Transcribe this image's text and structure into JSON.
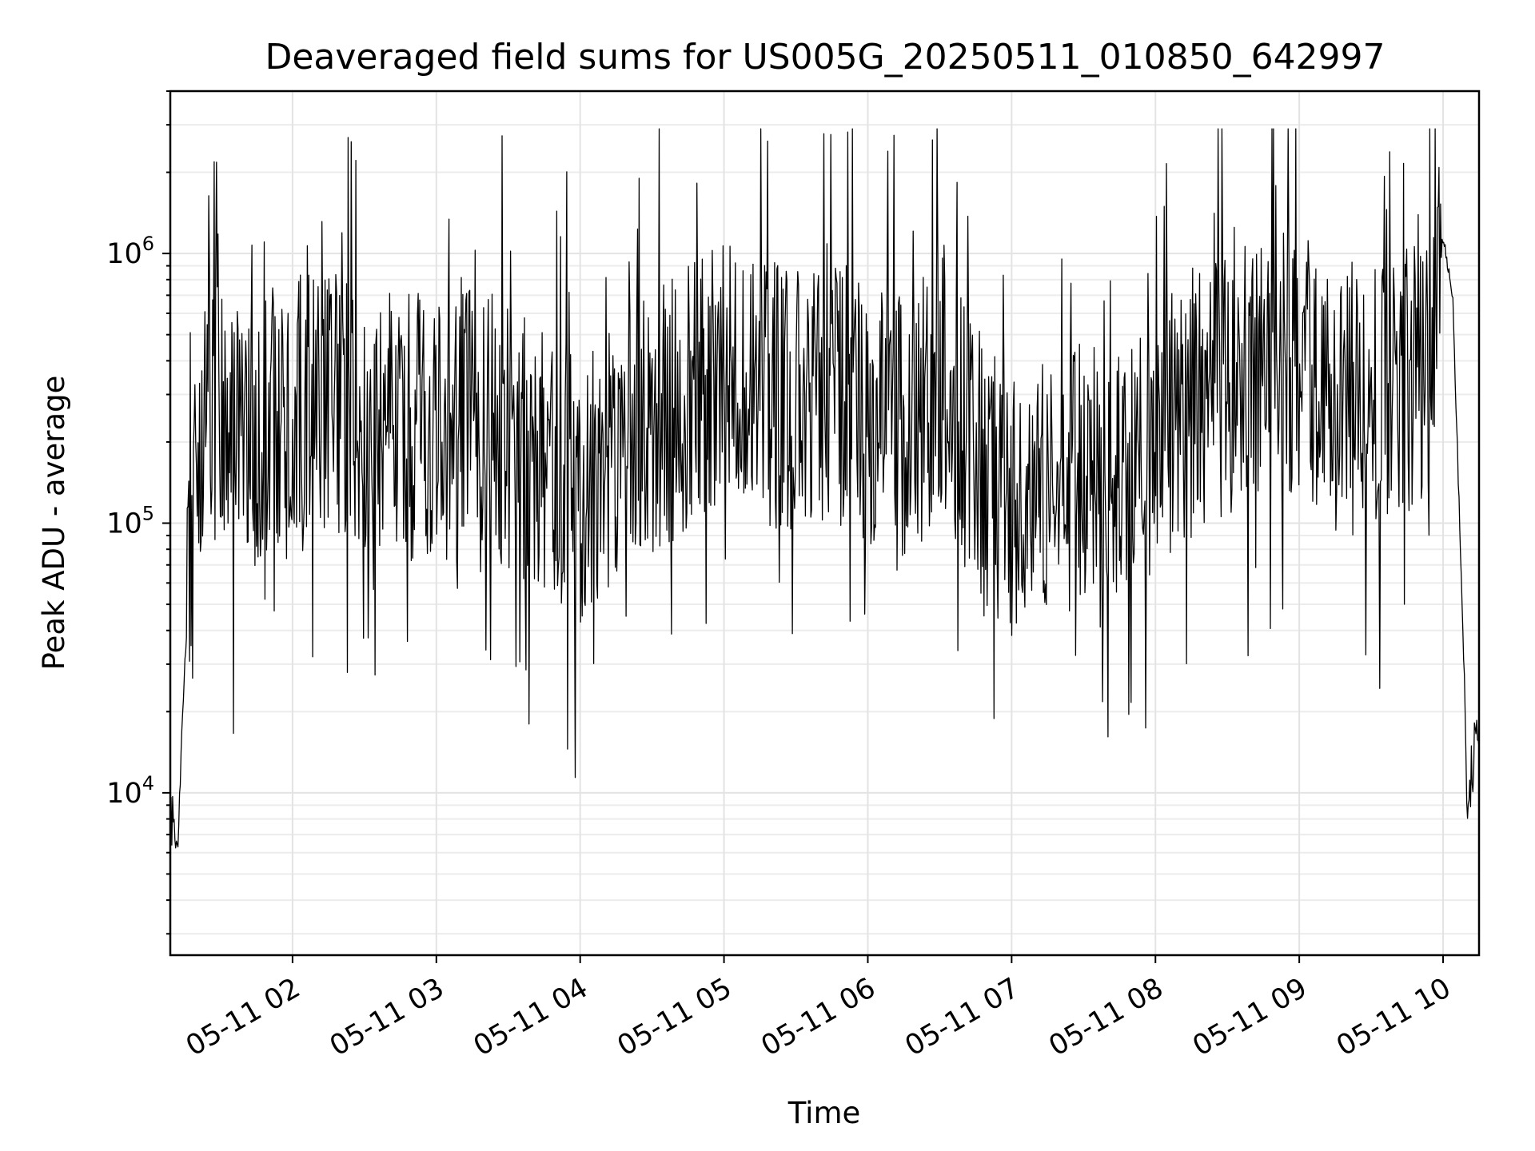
{
  "chart_data": {
    "type": "line",
    "title": "Deaveraged field sums for US005G_20250511_010850_642997",
    "xlabel": "Time",
    "ylabel": "Peak ADU - average",
    "yscale": "log",
    "grid": true,
    "legend": "none",
    "line_color": "#000000",
    "xlim": [
      "2025-05-11 01:09",
      "2025-05-11 10:15"
    ],
    "ylim": [
      2500,
      4000000
    ],
    "x_ticks": [
      "05-11 02",
      "05-11 03",
      "05-11 04",
      "05-11 05",
      "05-11 06",
      "05-11 07",
      "05-11 08",
      "05-11 09",
      "05-11 10"
    ],
    "y_ticks": [
      {
        "value": 10000,
        "base": "10",
        "exp": "4"
      },
      {
        "value": 100000,
        "base": "10",
        "exp": "5"
      },
      {
        "value": 1000000,
        "base": "10",
        "exp": "6"
      }
    ],
    "series": [
      {
        "x": [
          "2025-05-11 01:09",
          "2025-05-11 01:12",
          "2025-05-11 01:15",
          "2025-05-11 01:20",
          "2025-05-11 01:30",
          "2025-05-11 01:45",
          "2025-05-11 02:00",
          "2025-05-11 02:15",
          "2025-05-11 02:30",
          "2025-05-11 02:45",
          "2025-05-11 03:00",
          "2025-05-11 03:15",
          "2025-05-11 03:30",
          "2025-05-11 03:45",
          "2025-05-11 04:00",
          "2025-05-11 04:15",
          "2025-05-11 04:30",
          "2025-05-11 04:45",
          "2025-05-11 05:00",
          "2025-05-11 05:15",
          "2025-05-11 05:30",
          "2025-05-11 05:45",
          "2025-05-11 06:00",
          "2025-05-11 06:15",
          "2025-05-11 06:30",
          "2025-05-11 06:45",
          "2025-05-11 07:00",
          "2025-05-11 07:15",
          "2025-05-11 07:30",
          "2025-05-11 07:45",
          "2025-05-11 08:00",
          "2025-05-11 08:15",
          "2025-05-11 08:30",
          "2025-05-11 08:45",
          "2025-05-11 09:00",
          "2025-05-11 09:15",
          "2025-05-11 09:30",
          "2025-05-11 09:45",
          "2025-05-11 09:55",
          "2025-05-11 10:00",
          "2025-05-11 10:04",
          "2025-05-11 10:09",
          "2025-05-11 10:10",
          "2025-05-11 10:12",
          "2025-05-11 10:14"
        ],
        "values": [
          8000,
          6000,
          30000,
          200000,
          300000,
          220000,
          260000,
          300000,
          250000,
          230000,
          220000,
          260000,
          200000,
          180000,
          130000,
          170000,
          230000,
          300000,
          360000,
          320000,
          280000,
          300000,
          250000,
          230000,
          340000,
          170000,
          120000,
          130000,
          150000,
          160000,
          200000,
          280000,
          330000,
          350000,
          420000,
          250000,
          300000,
          330000,
          380000,
          1200000,
          700000,
          25000,
          8000,
          12000,
          16000
        ]
      }
    ]
  }
}
